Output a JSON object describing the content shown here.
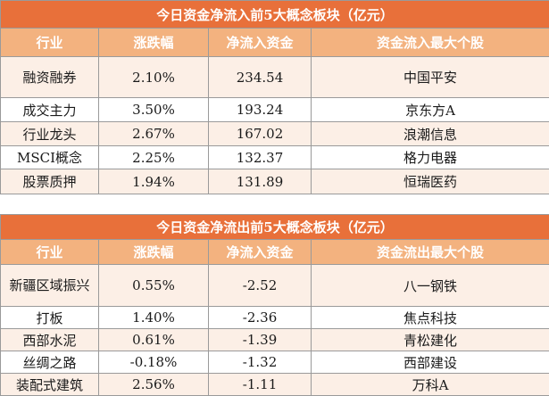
{
  "inflow": {
    "title": "今日资金净流入前5大概念板块（亿元）",
    "headers": [
      "行业",
      "涨跌幅",
      "净流入资金",
      "资金流入最大个股"
    ],
    "rows": [
      {
        "sector": "融资融券",
        "change": "2.10%",
        "amount": "234.54",
        "stock": "中国平安"
      },
      {
        "sector": "成交主力",
        "change": "3.50%",
        "amount": "193.24",
        "stock": "京东方A"
      },
      {
        "sector": "行业龙头",
        "change": "2.67%",
        "amount": "167.02",
        "stock": "浪潮信息"
      },
      {
        "sector": "MSCI概念",
        "change": "2.25%",
        "amount": "132.37",
        "stock": "格力电器"
      },
      {
        "sector": "股票质押",
        "change": "1.94%",
        "amount": "131.89",
        "stock": "恒瑞医药"
      }
    ]
  },
  "outflow": {
    "title": "今日资金净流出前5大概念板块（亿元）",
    "headers": [
      "行业",
      "涨跌幅",
      "净流入资金",
      "资金流出最大个股"
    ],
    "rows": [
      {
        "sector": "新疆区域振兴",
        "change": "0.55%",
        "amount": "-2.52",
        "stock": "八一钢铁"
      },
      {
        "sector": "打板",
        "change": "1.40%",
        "amount": "-2.36",
        "stock": "焦点科技"
      },
      {
        "sector": "西部水泥",
        "change": "0.61%",
        "amount": "-1.39",
        "stock": "青松建化"
      },
      {
        "sector": "丝绸之路",
        "change": "-0.18%",
        "amount": "-1.32",
        "stock": "西部建设"
      },
      {
        "sector": "装配式建筑",
        "change": "2.56%",
        "amount": "-1.11",
        "stock": "万科A"
      }
    ]
  },
  "colors": {
    "title_bg": "#e8703a",
    "header_bg": "#f3b27f",
    "alt_row_bg": "#fcefe6",
    "grid": "#9a9a9a"
  }
}
